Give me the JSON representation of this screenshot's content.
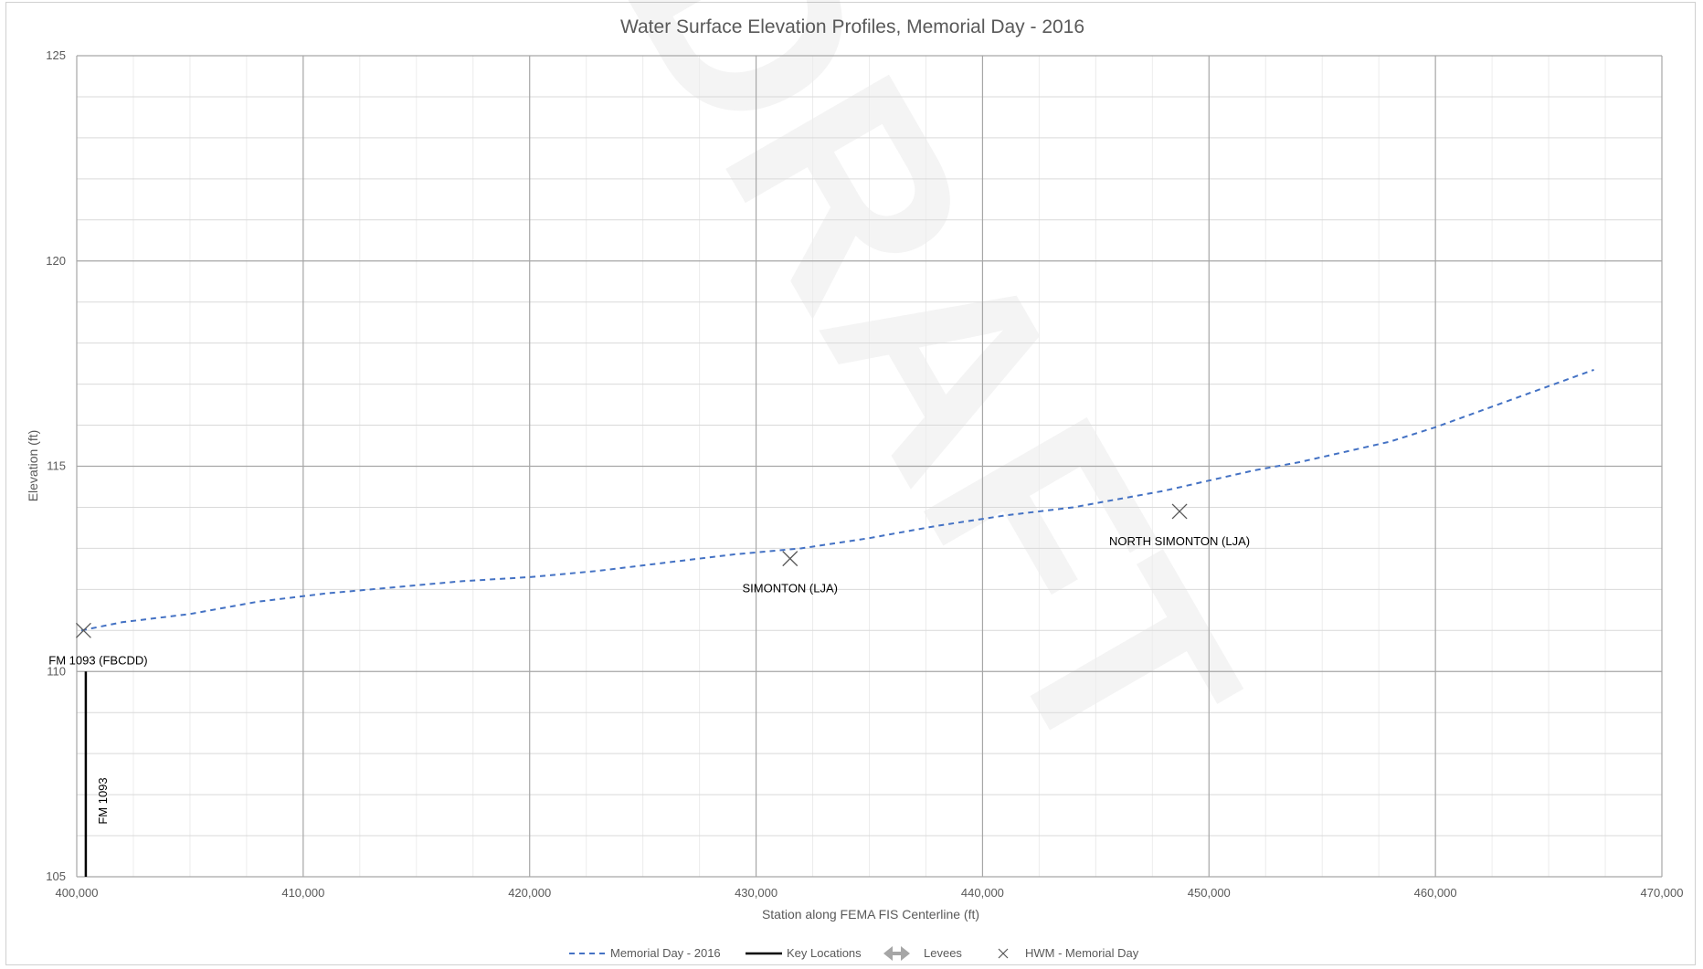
{
  "watermark": "DRAFT",
  "chart_data": {
    "type": "line",
    "title": "Water Surface Elevation Profiles, Memorial Day - 2016",
    "xlabel": "Station along FEMA FIS Centerline (ft)",
    "ylabel": "Elevation (ft)",
    "xlim": [
      400000,
      470000
    ],
    "ylim": [
      105,
      125
    ],
    "x_ticks": [
      {
        "value": 400000,
        "label": "400,000"
      },
      {
        "value": 410000,
        "label": "410,000"
      },
      {
        "value": 420000,
        "label": "420,000"
      },
      {
        "value": 430000,
        "label": "430,000"
      },
      {
        "value": 440000,
        "label": "440,000"
      },
      {
        "value": 450000,
        "label": "450,000"
      },
      {
        "value": 460000,
        "label": "460,000"
      },
      {
        "value": 470000,
        "label": "470,000"
      }
    ],
    "y_ticks": [
      {
        "value": 105,
        "label": "105"
      },
      {
        "value": 110,
        "label": "110"
      },
      {
        "value": 115,
        "label": "115"
      },
      {
        "value": 120,
        "label": "120"
      },
      {
        "value": 125,
        "label": "125"
      }
    ],
    "grid": true,
    "legend_position": "bottom",
    "series": [
      {
        "name": "Memorial Day - 2016",
        "style": "dashed",
        "color": "#4472C4",
        "x": [
          400200,
          402000,
          405000,
          408000,
          411000,
          414000,
          417000,
          420000,
          423000,
          426000,
          429000,
          432000,
          435000,
          438000,
          441000,
          444000,
          446000,
          448000,
          450000,
          452000,
          454000,
          456000,
          458000,
          460000,
          462000,
          464000,
          467000
        ],
        "y": [
          111.0,
          111.2,
          111.4,
          111.7,
          111.9,
          112.05,
          112.2,
          112.3,
          112.45,
          112.65,
          112.85,
          113.0,
          113.25,
          113.55,
          113.8,
          114.0,
          114.2,
          114.4,
          114.65,
          114.9,
          115.1,
          115.35,
          115.6,
          115.95,
          116.35,
          116.75,
          117.35
        ]
      }
    ],
    "hwm": {
      "name": "HWM - Memorial Day",
      "points": [
        {
          "x": 400300,
          "y": 111.0,
          "label": "FM 1093 (FBCDD)"
        },
        {
          "x": 431500,
          "y": 112.75,
          "label": "SIMONTON (LJA)"
        },
        {
          "x": 448700,
          "y": 113.9,
          "label": "NORTH SIMONTON (LJA)"
        }
      ]
    },
    "key_locations": {
      "name": "Key Locations",
      "color": "#000000",
      "items": [
        {
          "x": 400400,
          "y_top": 110,
          "y_bottom": 105,
          "label": "FM 1093"
        }
      ]
    },
    "levees": {
      "name": "Levees",
      "color": "#A6A6A6"
    }
  }
}
